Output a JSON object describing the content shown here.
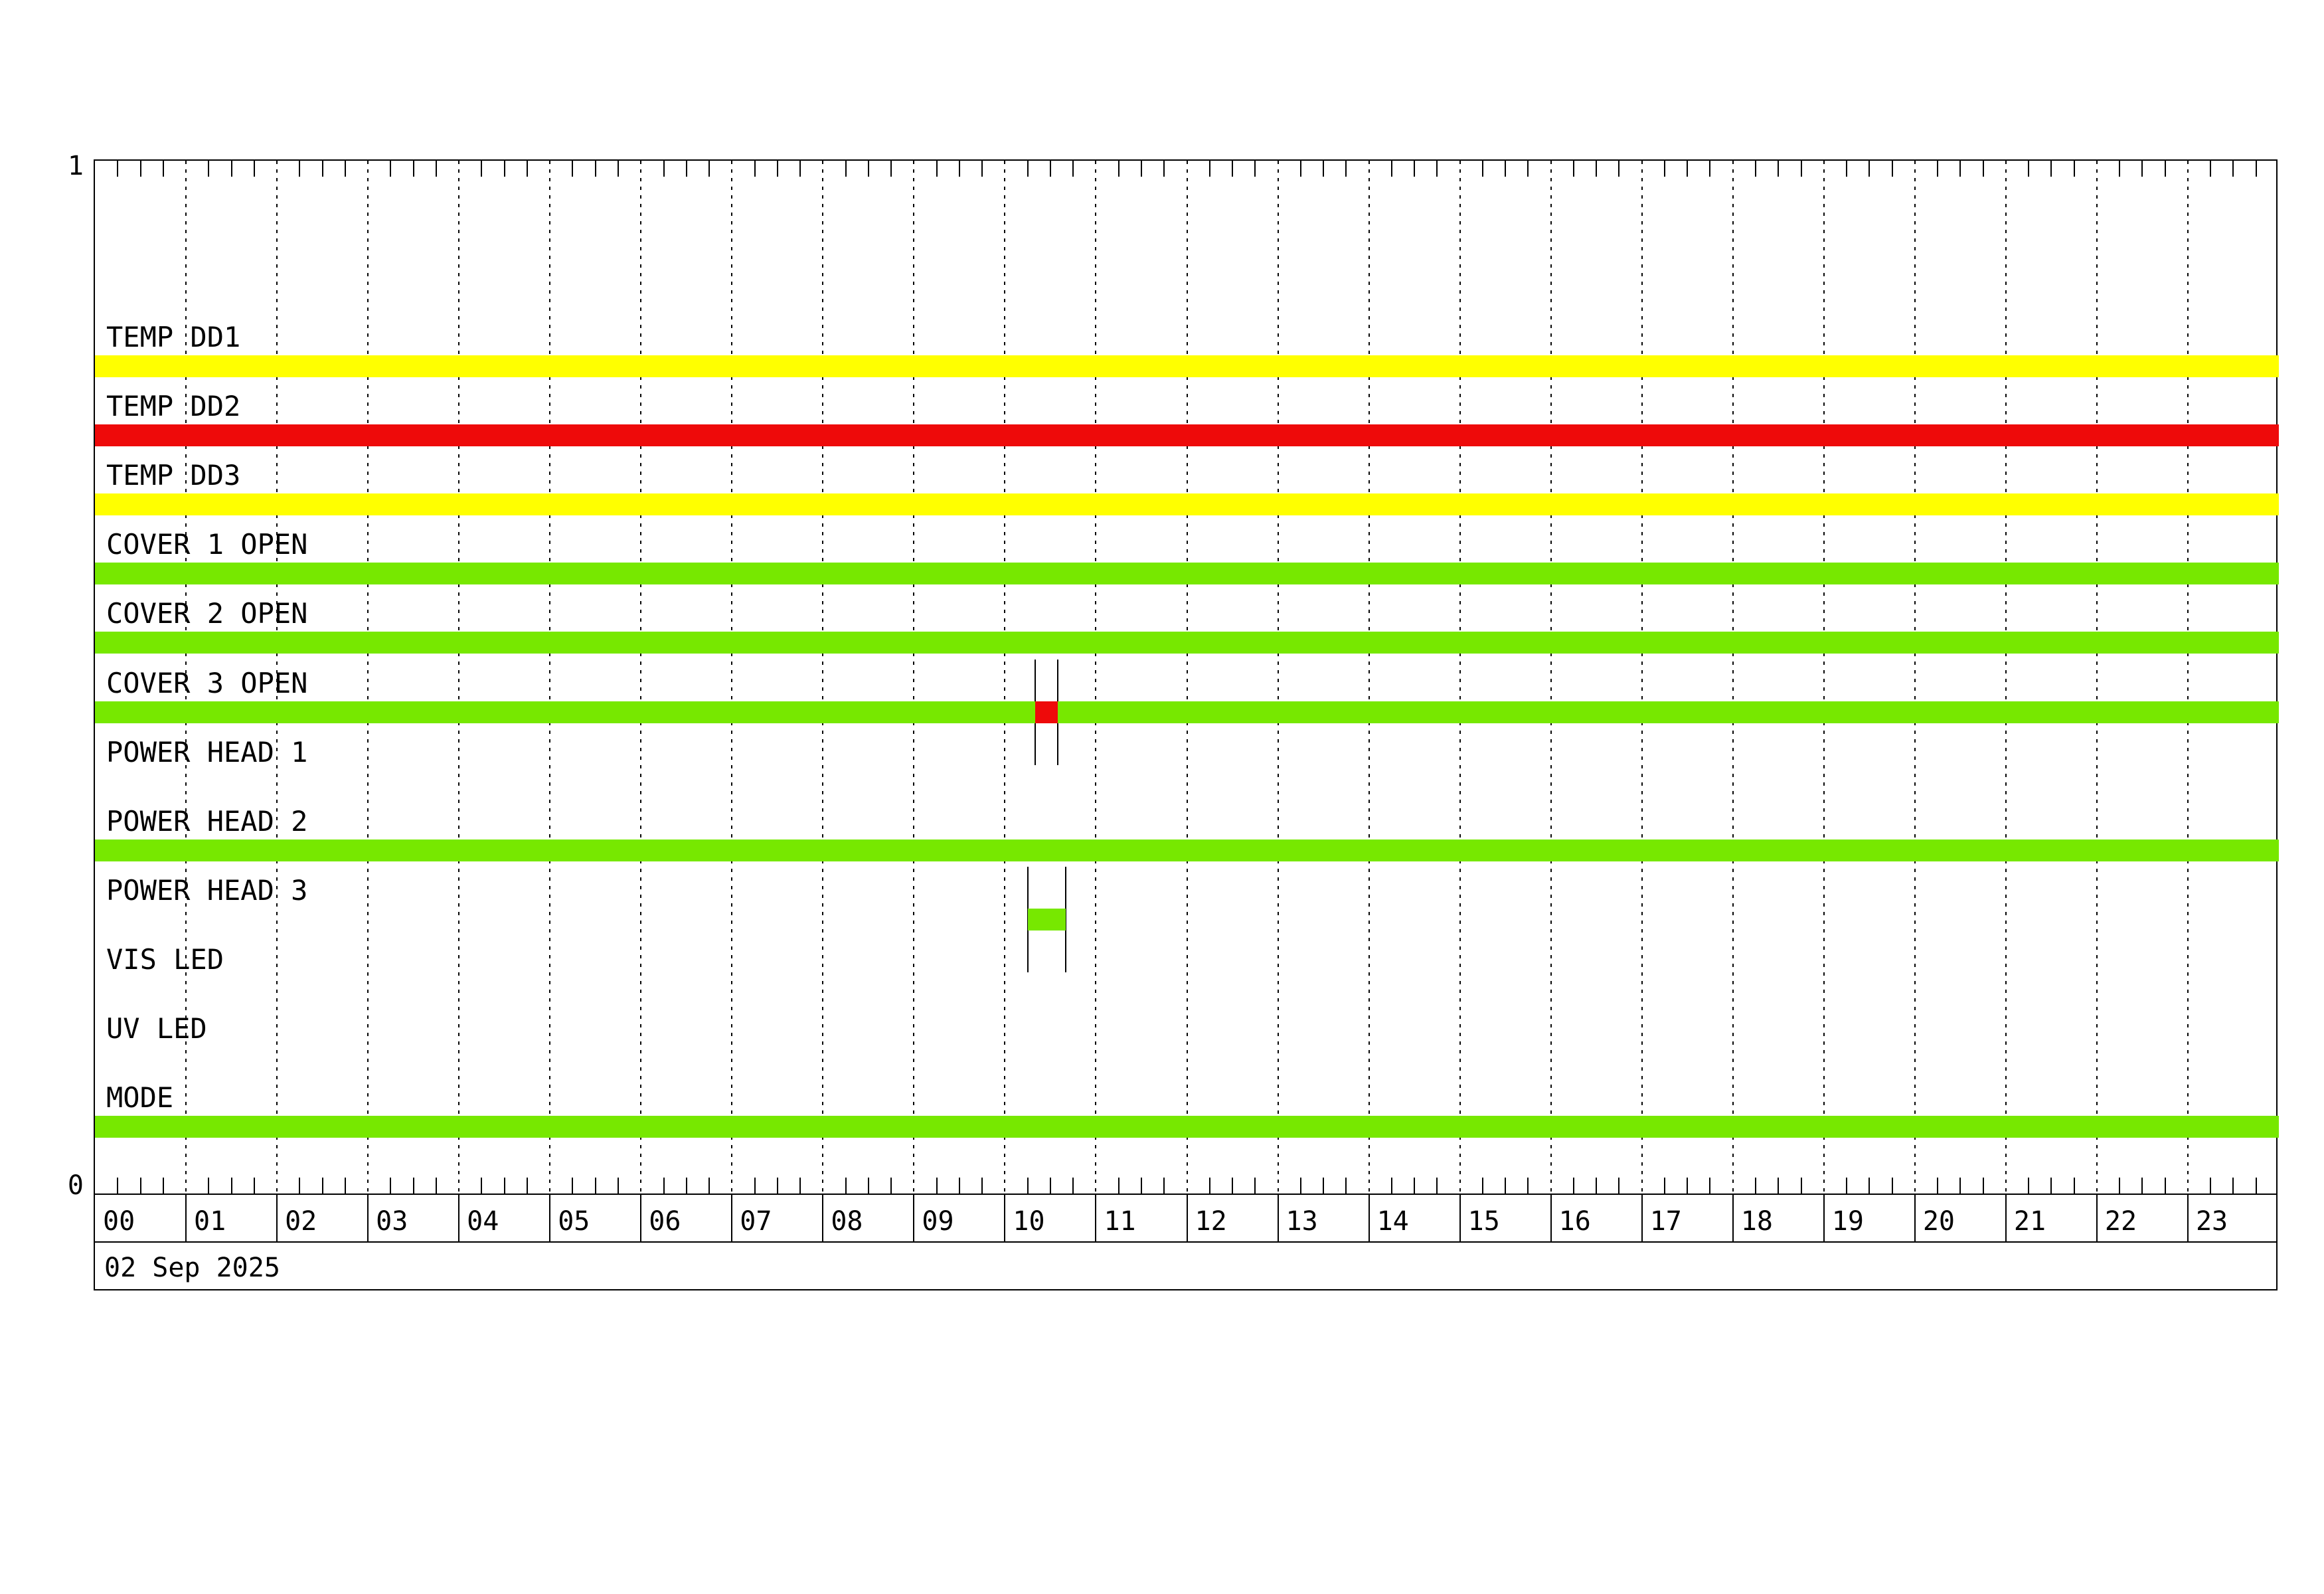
{
  "chart_data": {
    "type": "timeline-status",
    "date_label": "02 Sep 2025",
    "y_axis": {
      "top_label": "1",
      "bottom_label": "0"
    },
    "x_axis": {
      "unit": "hours",
      "start": 0,
      "end": 24,
      "minor_tick_minutes": 15,
      "hour_labels": [
        "00",
        "01",
        "02",
        "03",
        "04",
        "05",
        "06",
        "07",
        "08",
        "09",
        "10",
        "11",
        "12",
        "13",
        "14",
        "15",
        "16",
        "17",
        "18",
        "19",
        "20",
        "21",
        "22",
        "23"
      ]
    },
    "colors": {
      "on_green": "#77E800",
      "warn_yellow": "#FFFF00",
      "alarm_red": "#EE0A0A"
    },
    "rows": [
      {
        "label": "TEMP DD1",
        "segments": [
          {
            "start": 0,
            "end": 24,
            "color": "warn_yellow"
          }
        ],
        "markers": []
      },
      {
        "label": "TEMP DD2",
        "segments": [
          {
            "start": 0,
            "end": 24,
            "color": "alarm_red"
          }
        ],
        "markers": []
      },
      {
        "label": "TEMP DD3",
        "segments": [
          {
            "start": 0,
            "end": 24,
            "color": "warn_yellow"
          }
        ],
        "markers": []
      },
      {
        "label": "COVER 1 OPEN",
        "segments": [
          {
            "start": 0,
            "end": 24,
            "color": "on_green"
          }
        ],
        "markers": []
      },
      {
        "label": "COVER 2 OPEN",
        "segments": [
          {
            "start": 0,
            "end": 24,
            "color": "on_green"
          }
        ],
        "markers": []
      },
      {
        "label": "COVER 3 OPEN",
        "segments": [
          {
            "start": 0,
            "end": 10.333,
            "color": "on_green"
          },
          {
            "start": 10.333,
            "end": 10.583,
            "color": "alarm_red"
          },
          {
            "start": 10.583,
            "end": 24,
            "color": "on_green"
          }
        ],
        "markers": [
          10.333,
          10.583
        ]
      },
      {
        "label": "POWER HEAD 1",
        "segments": [],
        "markers": []
      },
      {
        "label": "POWER HEAD 2",
        "segments": [
          {
            "start": 0,
            "end": 24,
            "color": "on_green"
          }
        ],
        "markers": []
      },
      {
        "label": "POWER HEAD 3",
        "segments": [
          {
            "start": 10.25,
            "end": 10.667,
            "color": "on_green"
          }
        ],
        "markers": [
          10.25,
          10.667
        ]
      },
      {
        "label": "VIS LED",
        "segments": [],
        "markers": []
      },
      {
        "label": "UV LED",
        "segments": [],
        "markers": []
      },
      {
        "label": "MODE",
        "segments": [
          {
            "start": 0,
            "end": 24,
            "color": "on_green"
          }
        ],
        "markers": []
      }
    ]
  }
}
